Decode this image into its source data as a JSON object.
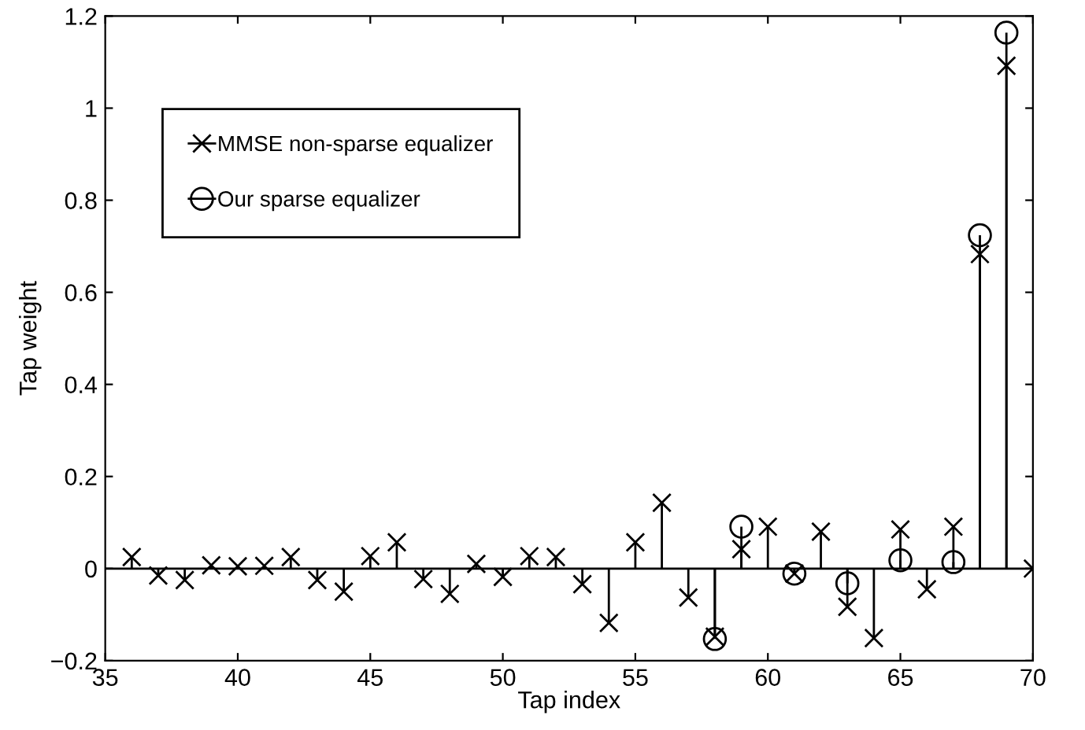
{
  "chart_data": {
    "type": "lollipop",
    "xlabel": "Tap index",
    "ylabel": "Tap weight",
    "xlim": [
      35,
      70
    ],
    "ylim": [
      -0.2,
      1.2
    ],
    "xticks": [
      35,
      40,
      45,
      50,
      55,
      60,
      65,
      70
    ],
    "yticks": [
      {
        "value": -0.2,
        "label": "−0.2"
      },
      0,
      0.2,
      0.4,
      0.6,
      0.8,
      1,
      1.2
    ],
    "legend": "top left",
    "series": [
      {
        "name": "MMSE non-sparse equalizer",
        "color": "#000000",
        "marker": "cross",
        "x": [
          36,
          37,
          38,
          39,
          40,
          41,
          42,
          43,
          44,
          45,
          46,
          47,
          48,
          49,
          50,
          51,
          52,
          53,
          54,
          55,
          56,
          57,
          58,
          59,
          60,
          61,
          62,
          63,
          64,
          65,
          66,
          67,
          68,
          69,
          70
        ],
        "values": [
          0.025,
          -0.015,
          -0.025,
          0.007,
          0.005,
          0.006,
          0.025,
          -0.025,
          -0.05,
          0.027,
          0.057,
          -0.023,
          -0.055,
          0.01,
          -0.018,
          0.027,
          0.025,
          -0.034,
          -0.118,
          0.057,
          0.143,
          -0.063,
          -0.148,
          0.042,
          0.091,
          -0.011,
          0.08,
          -0.083,
          -0.151,
          0.085,
          -0.045,
          0.091,
          0.683,
          1.092,
          0
        ]
      },
      {
        "name": "Our sparse equalizer",
        "color": "#000000",
        "marker": "circle",
        "x": [
          58,
          59,
          61,
          63,
          65,
          67,
          68,
          69
        ],
        "values": [
          -0.153,
          0.091,
          -0.011,
          -0.032,
          0.018,
          0.014,
          0.724,
          1.164
        ]
      }
    ]
  }
}
